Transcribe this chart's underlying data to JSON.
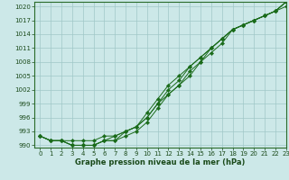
{
  "xlabel": "Graphe pression niveau de la mer (hPa)",
  "bg_color": "#cce8e8",
  "grid_color": "#a0c8c8",
  "line_color": "#1a6b1a",
  "xlim": [
    -0.5,
    23
  ],
  "ylim": [
    989.5,
    1021
  ],
  "yticks": [
    990,
    993,
    996,
    999,
    1002,
    1005,
    1008,
    1011,
    1014,
    1017,
    1020
  ],
  "xticks": [
    0,
    1,
    2,
    3,
    4,
    5,
    6,
    7,
    8,
    9,
    10,
    11,
    12,
    13,
    14,
    15,
    16,
    17,
    18,
    19,
    20,
    21,
    22,
    23
  ],
  "series1": [
    992,
    991,
    991,
    991,
    991,
    991,
    992,
    992,
    993,
    994,
    996,
    999,
    1001,
    1003,
    1005,
    1008,
    1011,
    1013,
    1015,
    1016,
    1017,
    1018,
    1019,
    1020
  ],
  "series2": [
    992,
    991,
    991,
    990,
    990,
    990,
    991,
    991,
    992,
    993,
    995,
    998,
    1001,
    1003,
    1006,
    1008,
    1010,
    1012,
    1015,
    1016,
    1017,
    1018,
    1019,
    1021
  ],
  "series3": [
    992,
    991,
    991,
    990,
    990,
    990,
    991,
    991,
    993,
    994,
    996,
    999,
    1002,
    1004,
    1007,
    1009,
    1011,
    1013,
    1015,
    1016,
    1017,
    1018,
    1019,
    1021
  ],
  "series4": [
    992,
    991,
    991,
    990,
    990,
    990,
    991,
    992,
    993,
    994,
    997,
    1000,
    1003,
    1005,
    1007,
    1009,
    1011,
    1013,
    1015,
    1016,
    1017,
    1018,
    1019,
    1021
  ]
}
